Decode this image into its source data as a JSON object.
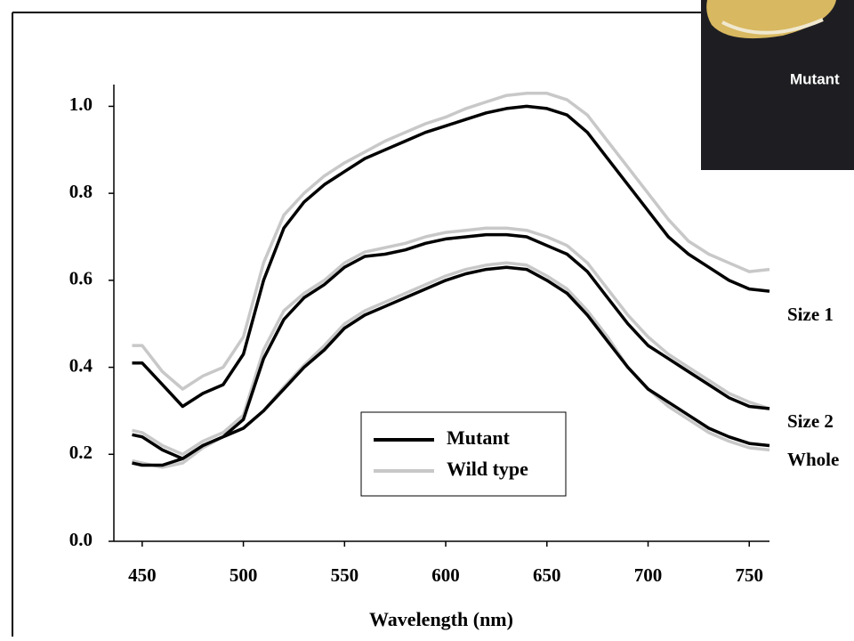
{
  "chart_data": {
    "type": "line",
    "x_label": "Wavelength (nm)",
    "inset_label": "Mutant",
    "series": [
      {
        "name": "Mutant",
        "color": "#000000"
      },
      {
        "name": "Wild type",
        "color": "#c8c8c8"
      }
    ],
    "x": [
      445,
      450,
      460,
      470,
      480,
      490,
      500,
      510,
      520,
      530,
      540,
      550,
      560,
      570,
      580,
      590,
      600,
      610,
      620,
      630,
      640,
      650,
      660,
      670,
      680,
      690,
      700,
      710,
      720,
      730,
      740,
      750,
      760
    ],
    "groups": [
      {
        "label": "Size 1",
        "values": [
          [
            0.41,
            0.41,
            0.36,
            0.31,
            0.34,
            0.36,
            0.43,
            0.6,
            0.72,
            0.78,
            0.82,
            0.85,
            0.88,
            0.9,
            0.92,
            0.94,
            0.955,
            0.97,
            0.985,
            0.995,
            1.0,
            0.995,
            0.98,
            0.94,
            0.88,
            0.82,
            0.76,
            0.7,
            0.66,
            0.63,
            0.6,
            0.58,
            0.575
          ],
          [
            0.45,
            0.45,
            0.39,
            0.35,
            0.38,
            0.4,
            0.47,
            0.64,
            0.75,
            0.8,
            0.84,
            0.87,
            0.895,
            0.92,
            0.94,
            0.96,
            0.975,
            0.995,
            1.01,
            1.025,
            1.03,
            1.03,
            1.015,
            0.98,
            0.92,
            0.86,
            0.8,
            0.74,
            0.69,
            0.66,
            0.64,
            0.62,
            0.625
          ]
        ]
      },
      {
        "label": "Size 2",
        "values": [
          [
            0.245,
            0.24,
            0.21,
            0.19,
            0.22,
            0.24,
            0.28,
            0.42,
            0.51,
            0.56,
            0.59,
            0.63,
            0.655,
            0.66,
            0.67,
            0.685,
            0.695,
            0.7,
            0.705,
            0.705,
            0.7,
            0.68,
            0.66,
            0.62,
            0.56,
            0.5,
            0.45,
            0.42,
            0.39,
            0.36,
            0.33,
            0.31,
            0.305
          ],
          [
            0.255,
            0.25,
            0.22,
            0.2,
            0.23,
            0.25,
            0.29,
            0.44,
            0.53,
            0.57,
            0.6,
            0.64,
            0.665,
            0.675,
            0.685,
            0.7,
            0.71,
            0.715,
            0.72,
            0.72,
            0.715,
            0.7,
            0.68,
            0.64,
            0.58,
            0.52,
            0.47,
            0.43,
            0.4,
            0.37,
            0.34,
            0.32,
            0.305
          ]
        ]
      },
      {
        "label": "Whole",
        "values": [
          [
            0.18,
            0.175,
            0.175,
            0.19,
            0.22,
            0.24,
            0.26,
            0.3,
            0.35,
            0.4,
            0.44,
            0.49,
            0.52,
            0.54,
            0.56,
            0.58,
            0.6,
            0.615,
            0.625,
            0.63,
            0.625,
            0.6,
            0.57,
            0.52,
            0.46,
            0.4,
            0.35,
            0.32,
            0.29,
            0.26,
            0.24,
            0.225,
            0.22
          ],
          [
            0.185,
            0.18,
            0.17,
            0.18,
            0.215,
            0.24,
            0.26,
            0.3,
            0.355,
            0.405,
            0.45,
            0.5,
            0.53,
            0.55,
            0.57,
            0.59,
            0.61,
            0.625,
            0.635,
            0.64,
            0.635,
            0.61,
            0.58,
            0.53,
            0.47,
            0.4,
            0.35,
            0.31,
            0.28,
            0.25,
            0.23,
            0.215,
            0.21
          ]
        ]
      }
    ],
    "xlim": [
      436,
      760
    ],
    "ylim": [
      0,
      1.05
    ],
    "xticks": [
      450,
      500,
      550,
      600,
      650,
      700,
      750
    ],
    "yticks": [
      {
        "value": 0,
        "label": "0.0"
      },
      0.2,
      0.4,
      0.6,
      0.8,
      {
        "value": 1,
        "label": "1.0"
      }
    ]
  }
}
